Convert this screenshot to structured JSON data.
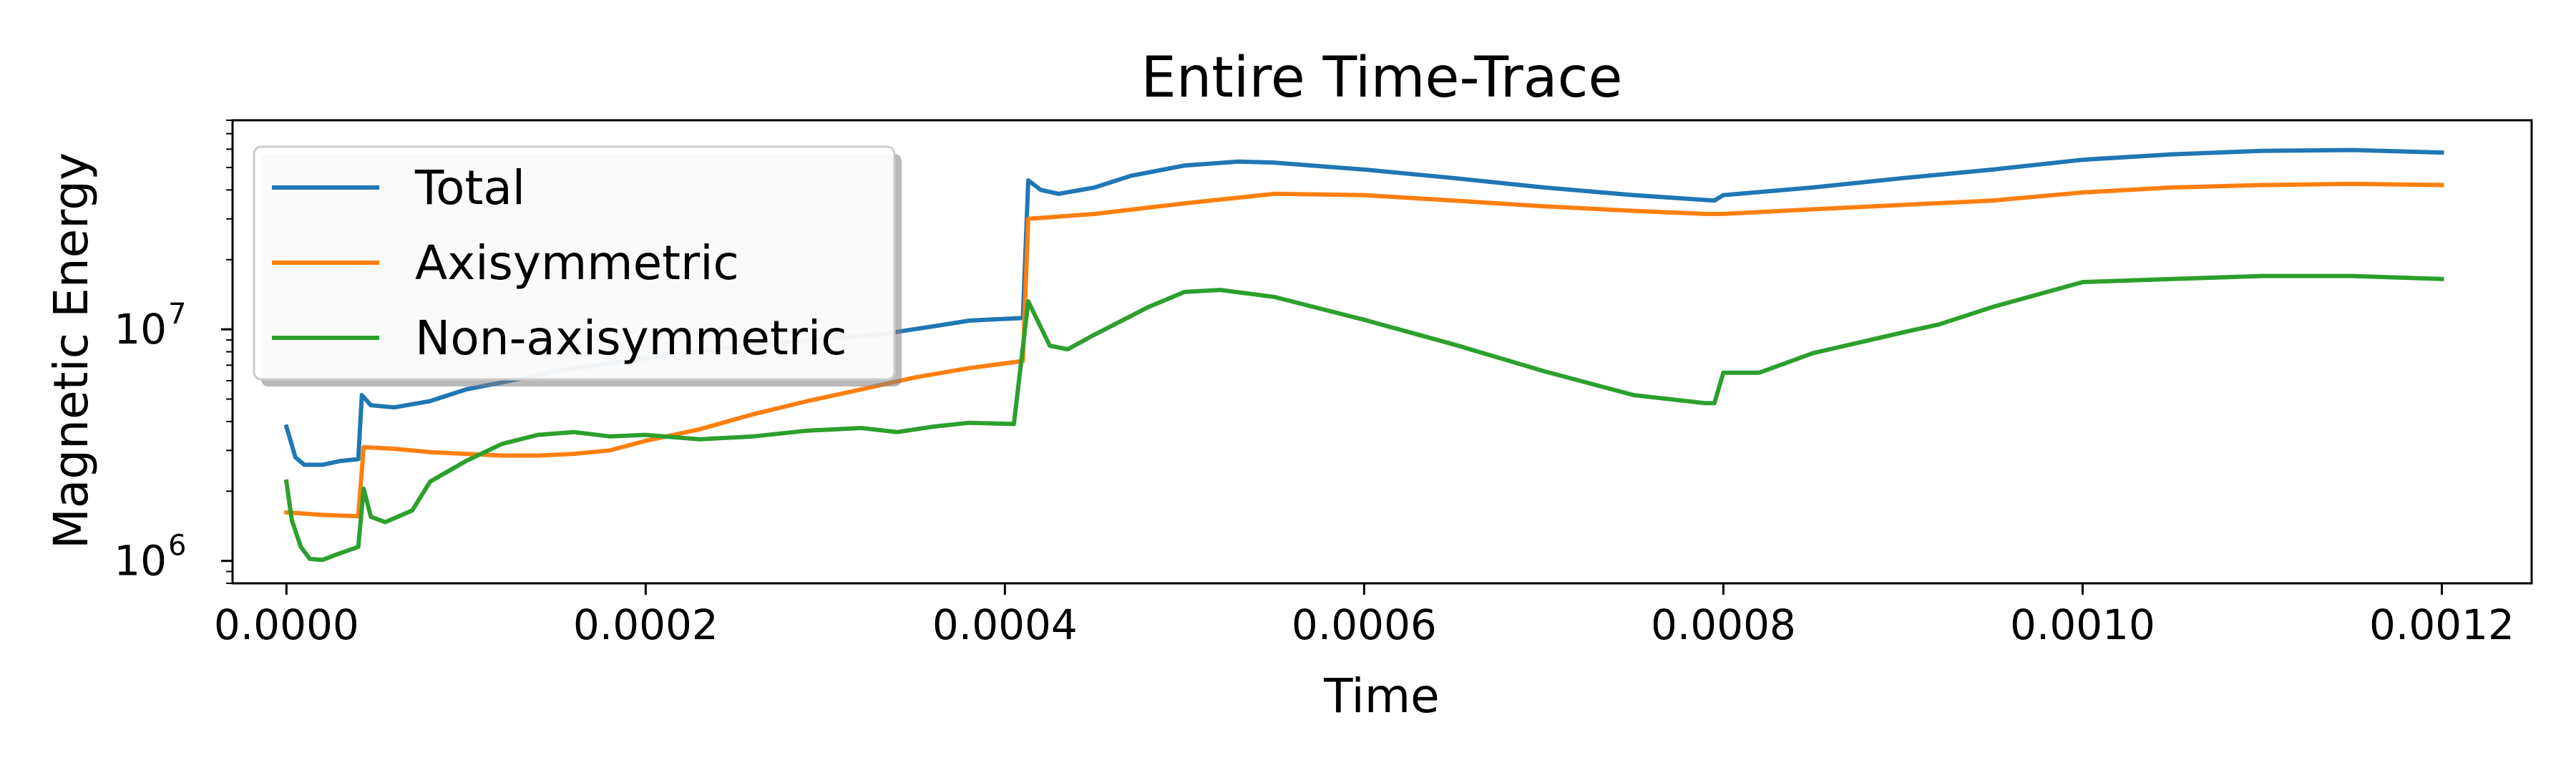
{
  "chart_data": {
    "type": "line",
    "title": "Entire Time-Trace",
    "xlabel": "Time",
    "ylabel": "Magnetic Energy",
    "xlim": [
      -3e-05,
      0.00125
    ],
    "ylim": [
      800000,
      80000000
    ],
    "yscale": "log",
    "grid": false,
    "legend_placement": "top-left",
    "xticks": [
      {
        "value": 0.0,
        "label": "0.0000"
      },
      {
        "value": 0.0002,
        "label": "0.0002"
      },
      {
        "value": 0.0004,
        "label": "0.0004"
      },
      {
        "value": 0.0006,
        "label": "0.0006"
      },
      {
        "value": 0.0008,
        "label": "0.0008"
      },
      {
        "value": 0.001,
        "label": "0.0010"
      },
      {
        "value": 0.0012,
        "label": "0.0012"
      }
    ],
    "yticks": [
      {
        "value": 1000000,
        "base": "10",
        "exp": "6"
      },
      {
        "value": 10000000,
        "base": "10",
        "exp": "7"
      }
    ],
    "series": [
      {
        "name": "Total",
        "color": "#1f77b4",
        "points": [
          [
            0.0,
            3800000
          ],
          [
            5e-06,
            2800000
          ],
          [
            1e-05,
            2600000
          ],
          [
            2e-05,
            2600000
          ],
          [
            3e-05,
            2700000
          ],
          [
            4e-05,
            2750000
          ],
          [
            4.2e-05,
            5200000
          ],
          [
            4.7e-05,
            4700000
          ],
          [
            6e-05,
            4600000
          ],
          [
            8e-05,
            4900000
          ],
          [
            0.0001,
            5500000
          ],
          [
            0.00012,
            5900000
          ],
          [
            0.00015,
            6600000
          ],
          [
            0.0002,
            7500000
          ],
          [
            0.00025,
            8400000
          ],
          [
            0.0003,
            9100000
          ],
          [
            0.00033,
            9500000
          ],
          [
            0.00036,
            10300000
          ],
          [
            0.00038,
            10900000
          ],
          [
            0.00041,
            11200000
          ],
          [
            0.000413,
            44000000
          ],
          [
            0.00042,
            40000000
          ],
          [
            0.00043,
            38500000
          ],
          [
            0.00045,
            41000000
          ],
          [
            0.00047,
            46000000
          ],
          [
            0.0005,
            51000000
          ],
          [
            0.00053,
            53000000
          ],
          [
            0.00055,
            52500000
          ],
          [
            0.0006,
            49000000
          ],
          [
            0.00065,
            45000000
          ],
          [
            0.0007,
            41000000
          ],
          [
            0.00075,
            38000000
          ],
          [
            0.000795,
            36000000
          ],
          [
            0.0008,
            38000000
          ],
          [
            0.00085,
            41000000
          ],
          [
            0.0009,
            45000000
          ],
          [
            0.00095,
            49000000
          ],
          [
            0.001,
            54000000
          ],
          [
            0.00105,
            57000000
          ],
          [
            0.0011,
            59000000
          ],
          [
            0.00115,
            59500000
          ],
          [
            0.0012,
            58000000
          ]
        ]
      },
      {
        "name": "Axisymmetric",
        "color": "#ff7f0e",
        "points": [
          [
            0.0,
            1620000
          ],
          [
            2e-05,
            1580000
          ],
          [
            4e-05,
            1560000
          ],
          [
            4.3e-05,
            3100000
          ],
          [
            6e-05,
            3050000
          ],
          [
            8e-05,
            2950000
          ],
          [
            0.0001,
            2900000
          ],
          [
            0.00012,
            2850000
          ],
          [
            0.00014,
            2850000
          ],
          [
            0.00016,
            2900000
          ],
          [
            0.00018,
            3000000
          ],
          [
            0.0002,
            3300000
          ],
          [
            0.00023,
            3700000
          ],
          [
            0.00026,
            4300000
          ],
          [
            0.00029,
            4900000
          ],
          [
            0.00032,
            5500000
          ],
          [
            0.00035,
            6200000
          ],
          [
            0.00038,
            6800000
          ],
          [
            0.00041,
            7300000
          ],
          [
            0.000413,
            30000000
          ],
          [
            0.00045,
            31500000
          ],
          [
            0.0005,
            35000000
          ],
          [
            0.00055,
            38500000
          ],
          [
            0.0006,
            38000000
          ],
          [
            0.00065,
            36000000
          ],
          [
            0.0007,
            34000000
          ],
          [
            0.00075,
            32500000
          ],
          [
            0.00079,
            31500000
          ],
          [
            0.0008,
            31500000
          ],
          [
            0.00085,
            33000000
          ],
          [
            0.0009,
            34500000
          ],
          [
            0.00095,
            36000000
          ],
          [
            0.001,
            39000000
          ],
          [
            0.00105,
            41000000
          ],
          [
            0.0011,
            42000000
          ],
          [
            0.00115,
            42500000
          ],
          [
            0.0012,
            42000000
          ]
        ]
      },
      {
        "name": "Non-axisymmetric",
        "color": "#2ca02c",
        "points": [
          [
            0.0,
            2200000
          ],
          [
            3e-06,
            1500000
          ],
          [
            8e-06,
            1150000
          ],
          [
            1.3e-05,
            1020000
          ],
          [
            2e-05,
            1010000
          ],
          [
            3e-05,
            1080000
          ],
          [
            4e-05,
            1150000
          ],
          [
            4.3e-05,
            2050000
          ],
          [
            4.7e-05,
            1550000
          ],
          [
            5.5e-05,
            1470000
          ],
          [
            7e-05,
            1650000
          ],
          [
            8e-05,
            2200000
          ],
          [
            0.0001,
            2700000
          ],
          [
            0.00012,
            3200000
          ],
          [
            0.00014,
            3500000
          ],
          [
            0.00016,
            3600000
          ],
          [
            0.00018,
            3450000
          ],
          [
            0.0002,
            3500000
          ],
          [
            0.00023,
            3350000
          ],
          [
            0.00026,
            3450000
          ],
          [
            0.00029,
            3650000
          ],
          [
            0.00032,
            3750000
          ],
          [
            0.00034,
            3600000
          ],
          [
            0.00036,
            3800000
          ],
          [
            0.00038,
            3950000
          ],
          [
            0.000405,
            3900000
          ],
          [
            0.000413,
            13200000
          ],
          [
            0.000425,
            8500000
          ],
          [
            0.000435,
            8200000
          ],
          [
            0.00045,
            9500000
          ],
          [
            0.00048,
            12500000
          ],
          [
            0.0005,
            14500000
          ],
          [
            0.00052,
            14800000
          ],
          [
            0.00055,
            13800000
          ],
          [
            0.0006,
            11000000
          ],
          [
            0.00065,
            8600000
          ],
          [
            0.0007,
            6600000
          ],
          [
            0.00075,
            5200000
          ],
          [
            0.00079,
            4800000
          ],
          [
            0.000795,
            4800000
          ],
          [
            0.0008,
            6500000
          ],
          [
            0.00082,
            6500000
          ],
          [
            0.00085,
            7900000
          ],
          [
            0.0009,
            9700000
          ],
          [
            0.00092,
            10500000
          ],
          [
            0.00095,
            12500000
          ],
          [
            0.001,
            16000000
          ],
          [
            0.00105,
            16500000
          ],
          [
            0.0011,
            17000000
          ],
          [
            0.00115,
            17000000
          ],
          [
            0.0012,
            16500000
          ]
        ]
      }
    ]
  }
}
